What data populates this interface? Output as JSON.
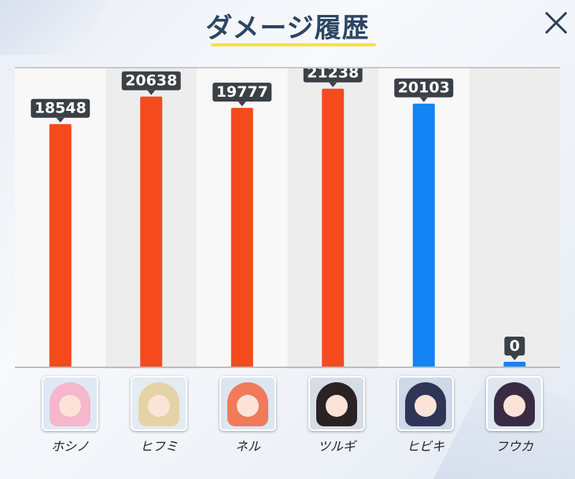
{
  "header": {
    "title": "ダメージ履歴",
    "close_icon": "close-icon"
  },
  "colors": {
    "red_bar": "#f44a1c",
    "blue_bar": "#1383f5",
    "label_bg": "#3b3f46",
    "underline": "#f7e23e"
  },
  "chart_data": {
    "type": "bar",
    "categories": [
      "ホシノ",
      "ヒフミ",
      "ネル",
      "ツルギ",
      "ヒビキ",
      "フウカ"
    ],
    "values": [
      18548,
      20638,
      19777,
      21238,
      20103,
      0
    ],
    "bar_colors": [
      "#f44a1c",
      "#f44a1c",
      "#f44a1c",
      "#f44a1c",
      "#1383f5",
      "#1383f5"
    ],
    "title": "",
    "xlabel": "",
    "ylabel": "",
    "ylim": [
      0,
      25000
    ],
    "grid": false
  },
  "characters": [
    {
      "name": "ホシノ",
      "hair": "#f6b6cc",
      "bg": "#dfe9f5"
    },
    {
      "name": "ヒフミ",
      "hair": "#e5d3a8",
      "bg": "#e3ebf3"
    },
    {
      "name": "ネル",
      "hair": "#f07a5a",
      "bg": "#dbe6f2"
    },
    {
      "name": "ツルギ",
      "hair": "#2a2224",
      "bg": "#d7dde6"
    },
    {
      "name": "ヒビキ",
      "hair": "#2e3556",
      "bg": "#cfd8e6"
    },
    {
      "name": "フウカ",
      "hair": "#3a2b45",
      "bg": "#dfe6f1"
    }
  ]
}
